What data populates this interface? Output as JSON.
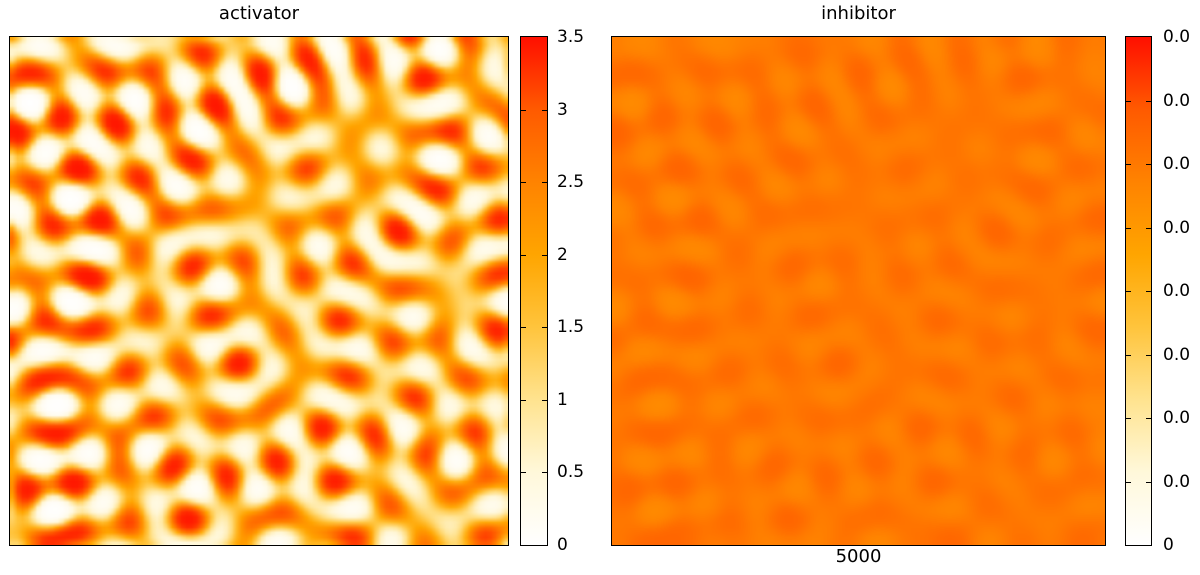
{
  "chart_data": [
    {
      "type": "heatmap",
      "title": "activator",
      "colorbar": {
        "min": 0,
        "max": 3.5,
        "tick_labels_top_to_bottom": [
          "3.5",
          "3",
          "2.5",
          "2",
          "1.5",
          "1",
          "0.5",
          "0"
        ]
      },
      "value_mapping": {
        "kind": "sigmoid",
        "gain": 1.5,
        "offset": -0.15,
        "scale": 3.5
      },
      "description": "labyrinthine Turing reaction-diffusion pattern, orange ridges with sparse red peak spots on white/cream background"
    },
    {
      "type": "heatmap",
      "title": "inhibitor",
      "colorbar": {
        "min": 0,
        "tick_labels_top_to_bottom": [
          "0.0",
          "0.0",
          "0.0",
          "0.0",
          "0.0",
          "0.0",
          "0.0",
          "0.0",
          "0"
        ]
      },
      "footer": "5000",
      "value_mapping": {
        "kind": "sigmoid-compressed",
        "base": 0.665,
        "span": 0.175,
        "gain": 1.1,
        "blur_passes": 4
      },
      "description": "same labyrinth pattern, smoothed and low-contrast: darker orange ridges on lighter orange background"
    }
  ],
  "palette": {
    "name": "white-yellow-orange-red",
    "stops": [
      {
        "t": 0.0,
        "color": "#ffffff"
      },
      {
        "t": 0.143,
        "color": "#fff8da"
      },
      {
        "t": 0.286,
        "color": "#ffe38f"
      },
      {
        "t": 0.429,
        "color": "#ffc43c"
      },
      {
        "t": 0.571,
        "color": "#ffa500"
      },
      {
        "t": 0.714,
        "color": "#ff8300"
      },
      {
        "t": 0.857,
        "color": "#ff5a00"
      },
      {
        "t": 1.0,
        "color": "#ff0f00"
      }
    ]
  },
  "pattern": {
    "kind": "turing-labyrinth",
    "grid": 100,
    "waves": 20,
    "wavelength_cells": 10,
    "seed": 20
  }
}
